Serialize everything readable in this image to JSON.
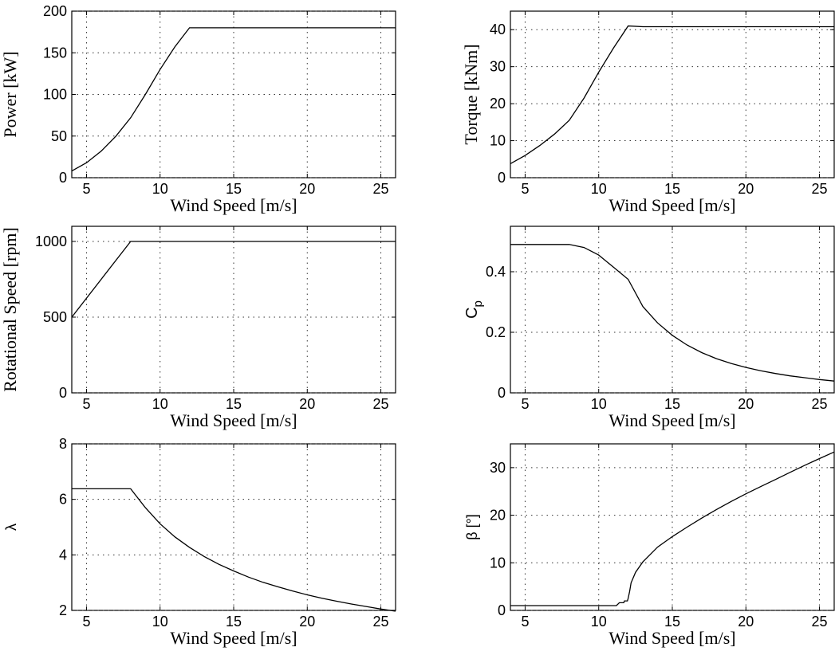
{
  "chart_data": [
    {
      "type": "line",
      "xlabel": "Wind Speed [m/s]",
      "ylabel": "Power [kW]",
      "xlim": [
        4,
        26
      ],
      "ylim": [
        0,
        200
      ],
      "xticks": [
        5,
        10,
        15,
        20,
        25
      ],
      "yticks": [
        0,
        50,
        100,
        150,
        200
      ],
      "grid": true,
      "series": [
        {
          "x": [
            4,
            5,
            6,
            7,
            8,
            9,
            10,
            11,
            12,
            13,
            14,
            15,
            16,
            17,
            18,
            19,
            20,
            21,
            22,
            23,
            24,
            25,
            26
          ],
          "y": [
            8,
            18,
            32,
            50,
            72,
            100,
            130,
            157,
            180,
            180,
            180,
            180,
            180,
            180,
            180,
            180,
            180,
            180,
            180,
            180,
            180,
            180,
            180
          ]
        }
      ]
    },
    {
      "type": "line",
      "xlabel": "Wind Speed [m/s]",
      "ylabel": "Torque [kNm]",
      "xlim": [
        4,
        26
      ],
      "ylim": [
        0,
        45
      ],
      "xticks": [
        5,
        10,
        15,
        20,
        25
      ],
      "yticks": [
        0,
        10,
        20,
        30,
        40
      ],
      "grid": true,
      "series": [
        {
          "x": [
            4,
            5,
            6,
            7,
            8,
            9,
            10,
            11,
            12,
            13,
            14,
            15,
            16,
            17,
            18,
            19,
            20,
            21,
            22,
            23,
            24,
            25,
            26
          ],
          "y": [
            3.8,
            6.0,
            8.7,
            11.8,
            15.5,
            21.5,
            28.5,
            35.0,
            41.0,
            40.8,
            40.8,
            40.8,
            40.8,
            40.8,
            40.8,
            40.8,
            40.8,
            40.8,
            40.8,
            40.8,
            40.8,
            40.8,
            40.8
          ]
        }
      ]
    },
    {
      "type": "line",
      "xlabel": "Wind Speed [m/s]",
      "ylabel": "Rotational Speed [rpm]",
      "xlim": [
        4,
        26
      ],
      "ylim": [
        0,
        1100
      ],
      "xticks": [
        5,
        10,
        15,
        20,
        25
      ],
      "yticks": [
        0,
        500,
        1000
      ],
      "grid": true,
      "series": [
        {
          "x": [
            4,
            8,
            12,
            16,
            20,
            26
          ],
          "y": [
            500,
            1000,
            1000,
            1000,
            1000,
            1000
          ]
        }
      ]
    },
    {
      "type": "line",
      "xlabel": "Wind Speed [m/s]",
      "ylabel": "Cp",
      "xlim": [
        4,
        26
      ],
      "ylim": [
        0,
        0.55
      ],
      "xticks": [
        5,
        10,
        15,
        20,
        25
      ],
      "yticks": [
        0,
        0.2,
        0.4
      ],
      "grid": true,
      "series": [
        {
          "x": [
            4,
            5,
            6,
            7,
            8,
            9,
            10,
            11,
            12,
            13,
            14,
            15,
            16,
            17,
            18,
            19,
            20,
            21,
            22,
            23,
            24,
            25,
            26
          ],
          "y": [
            0.49,
            0.49,
            0.49,
            0.49,
            0.49,
            0.48,
            0.455,
            0.415,
            0.375,
            0.285,
            0.231,
            0.19,
            0.158,
            0.133,
            0.113,
            0.097,
            0.084,
            0.073,
            0.064,
            0.056,
            0.05,
            0.044,
            0.039
          ]
        }
      ]
    },
    {
      "type": "line",
      "xlabel": "Wind Speed [m/s]",
      "ylabel": "λ",
      "xlim": [
        4,
        26
      ],
      "ylim": [
        2,
        8
      ],
      "xticks": [
        5,
        10,
        15,
        20,
        25
      ],
      "yticks": [
        2,
        4,
        6,
        8
      ],
      "grid": true,
      "series": [
        {
          "x": [
            4,
            5,
            6,
            7,
            8,
            9,
            10,
            11,
            12,
            13,
            14,
            15,
            16,
            17,
            18,
            19,
            20,
            21,
            22,
            23,
            24,
            25,
            26
          ],
          "y": [
            6.38,
            6.38,
            6.38,
            6.38,
            6.38,
            5.7,
            5.12,
            4.65,
            4.27,
            3.94,
            3.66,
            3.42,
            3.2,
            3.01,
            2.85,
            2.7,
            2.56,
            2.44,
            2.33,
            2.23,
            2.14,
            2.05,
            1.97
          ]
        }
      ]
    },
    {
      "type": "line",
      "xlabel": "Wind Speed [m/s]",
      "ylabel": "β [°]",
      "xlim": [
        4,
        26
      ],
      "ylim": [
        0,
        35
      ],
      "xticks": [
        5,
        10,
        15,
        20,
        25
      ],
      "yticks": [
        0,
        10,
        20,
        30
      ],
      "grid": true,
      "series": [
        {
          "x": [
            4,
            11.2,
            11.4,
            11.7,
            11.75,
            11.95,
            12.0,
            12.1,
            12.2,
            12.5,
            13,
            14,
            15,
            16,
            17,
            18,
            19,
            20,
            21,
            22,
            23,
            24,
            25,
            26
          ],
          "y": [
            1,
            1,
            1.6,
            1.6,
            2.0,
            2.0,
            2.5,
            4.0,
            5.8,
            8.0,
            10.2,
            13.3,
            15.5,
            17.5,
            19.4,
            21.2,
            22.9,
            24.5,
            26.0,
            27.5,
            29.0,
            30.5,
            31.9,
            33.3
          ]
        }
      ]
    }
  ]
}
